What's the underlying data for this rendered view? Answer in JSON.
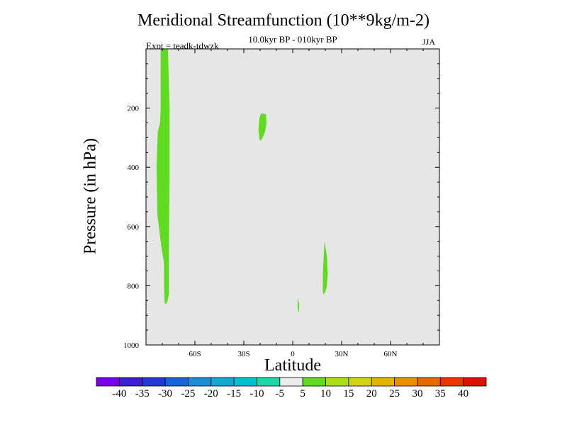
{
  "chart_data": {
    "type": "contour",
    "title": "Meridional Streamfunction (10**9kg/m-2)",
    "subtitle": "10.0kyr BP - 010kyr BP",
    "experiment": "Expt = teadk-tdwzk",
    "season": "JJA",
    "xlabel": "Latitude",
    "ylabel": "Pressure (in hPa)",
    "xlim": [
      -90,
      90
    ],
    "ylim": [
      1000,
      0
    ],
    "x_ticks": [
      -60,
      -30,
      0,
      30,
      60
    ],
    "x_tick_labels": [
      "60S",
      "30S",
      "0",
      "30N",
      "60N"
    ],
    "y_ticks": [
      200,
      400,
      600,
      800,
      1000
    ],
    "y_tick_labels": [
      "200",
      "400",
      "600",
      "800",
      "1000"
    ],
    "background_color": "#e6e6e6",
    "regions": [
      {
        "name": "region-sh-column",
        "range": "5 to 10",
        "color": "#5fdc1f",
        "points": [
          [
            -81,
            0
          ],
          [
            -76.5,
            0
          ],
          [
            -76.5,
            15
          ],
          [
            -75.5,
            200
          ],
          [
            -75.5,
            420
          ],
          [
            -76,
            720
          ],
          [
            -76,
            830
          ],
          [
            -76.8,
            850
          ],
          [
            -77.5,
            860
          ],
          [
            -78.5,
            860
          ],
          [
            -78.8,
            830
          ],
          [
            -79,
            720
          ],
          [
            -80,
            690
          ],
          [
            -81,
            650
          ],
          [
            -83,
            560
          ],
          [
            -83.5,
            400
          ],
          [
            -82.8,
            280
          ],
          [
            -81.4,
            250
          ],
          [
            -81,
            200
          ],
          [
            -81,
            10
          ]
        ]
      },
      {
        "name": "region-upper-subtropics",
        "range": "5 to 10",
        "color": "#5fdc1f",
        "points": [
          [
            -19.5,
            218
          ],
          [
            -16.5,
            220
          ],
          [
            -16,
            250
          ],
          [
            -17,
            280
          ],
          [
            -18.5,
            300
          ],
          [
            -19.5,
            310
          ],
          [
            -20.5,
            305
          ],
          [
            -21,
            270
          ],
          [
            -20.5,
            235
          ]
        ]
      },
      {
        "name": "region-nh-lower",
        "range": "5 to 10",
        "color": "#5fdc1f",
        "points": [
          [
            19.5,
            650
          ],
          [
            21,
            700
          ],
          [
            21.5,
            760
          ],
          [
            21,
            800
          ],
          [
            20,
            820
          ],
          [
            19,
            830
          ],
          [
            18.5,
            820
          ],
          [
            18.5,
            760
          ],
          [
            19,
            700
          ]
        ]
      },
      {
        "name": "region-equator-speck",
        "range": "5 to 10",
        "color": "#5fdc1f",
        "points": [
          [
            3.2,
            840
          ],
          [
            3.9,
            860
          ],
          [
            3.9,
            885
          ],
          [
            3.4,
            890
          ],
          [
            3.0,
            870
          ]
        ]
      }
    ],
    "colorbar": {
      "labels": [
        "-40",
        "-35",
        "-30",
        "-25",
        "-20",
        "-15",
        "-10",
        "-5",
        "5",
        "10",
        "15",
        "20",
        "25",
        "30",
        "35",
        "40"
      ],
      "colors": [
        "#7c00e6",
        "#3b1fd0",
        "#2438d6",
        "#1565d8",
        "#1a8fd8",
        "#12a8cf",
        "#00c0d0",
        "#1fd5a7",
        "#ececec",
        "#5fdc1f",
        "#aadc18",
        "#d2d21a",
        "#e0b400",
        "#e88e00",
        "#e86800",
        "#e83800",
        "#d81400"
      ]
    }
  }
}
